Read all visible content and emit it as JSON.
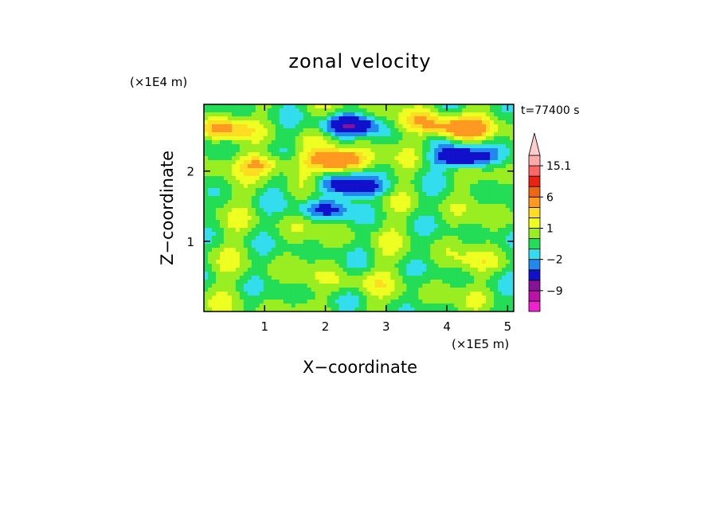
{
  "chart_data": {
    "type": "heatmap",
    "title": "zonal velocity",
    "xlabel": "X−coordinate",
    "ylabel": "Z−coordinate",
    "x_unit": "(×1E5 m)",
    "y_unit": "(×1E4 m)",
    "time_label": "t=77400 s",
    "xlim": [
      0,
      5.1
    ],
    "ylim": [
      0,
      2.95
    ],
    "x_ticks": [
      1,
      2,
      3,
      4,
      5
    ],
    "x_tick_labels": [
      "1",
      "2",
      "3",
      "4",
      "5"
    ],
    "y_ticks": [
      1,
      2
    ],
    "y_tick_labels": [
      "1",
      "2"
    ],
    "colorbar": {
      "levels": [
        -15,
        -12,
        -9,
        -6,
        -3,
        -2,
        -1,
        0,
        1,
        2,
        3,
        6,
        9,
        12,
        15.1,
        18
      ],
      "colors": [
        "#ee22cc",
        "#bb11aa",
        "#881199",
        "#1111cc",
        "#2288ee",
        "#33ddee",
        "#22dd55",
        "#99ee22",
        "#eeff22",
        "#ffdd22",
        "#ff9922",
        "#ee6611",
        "#ee2211",
        "#ff6666",
        "#ffaaaa",
        "#ffcccc"
      ],
      "tick_labels": [
        {
          "value": 15.1,
          "label": "15.1"
        },
        {
          "value": 6,
          "label": "6"
        },
        {
          "value": 1,
          "label": "1"
        },
        {
          "value": -2,
          "label": "−2"
        },
        {
          "value": -9,
          "label": "−9"
        }
      ]
    },
    "features": [
      {
        "x": 2.4,
        "z": 2.65,
        "value": -5
      },
      {
        "x": 4.3,
        "z": 2.2,
        "value": -6
      },
      {
        "x": 2.2,
        "z": 2.15,
        "value": 6
      },
      {
        "x": 4.2,
        "z": 2.6,
        "value": 5
      },
      {
        "x": 2.3,
        "z": 1.8,
        "value": -4
      },
      {
        "x": 2.0,
        "z": 1.45,
        "value": -3
      },
      {
        "x": 2.7,
        "z": 1.75,
        "value": -2
      },
      {
        "x": 1.0,
        "z": 2.1,
        "value": 3
      },
      {
        "x": 0.3,
        "z": 2.6,
        "value": 3
      },
      {
        "x": 3.6,
        "z": 2.7,
        "value": 2
      },
      {
        "x": 2.5,
        "z": 0.4,
        "value": 1
      },
      {
        "x": 4.5,
        "z": 0.7,
        "value": 1
      }
    ]
  }
}
